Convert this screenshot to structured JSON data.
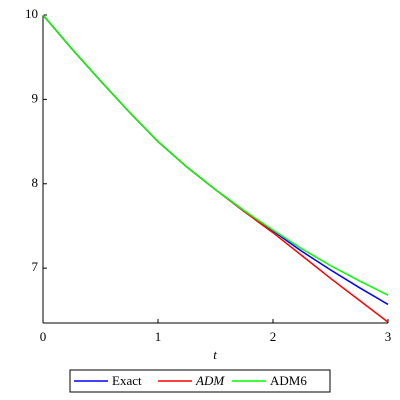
{
  "chart_data": {
    "type": "line",
    "x_label": "t",
    "x": [
      0,
      0.25,
      0.5,
      0.75,
      1,
      1.25,
      1.5,
      1.75,
      2,
      2.25,
      2.5,
      2.75,
      3
    ],
    "series": [
      {
        "name": "Exact",
        "color": "#0000ff",
        "values": [
          10,
          9.6,
          9.22,
          8.85,
          8.5,
          8.2,
          7.93,
          7.68,
          7.44,
          7.2,
          6.98,
          6.77,
          6.57
        ]
      },
      {
        "name": "ADM",
        "color": "#ff0000",
        "italic": true,
        "values": [
          10,
          9.6,
          9.22,
          8.85,
          8.5,
          8.2,
          7.93,
          7.67,
          7.42,
          7.15,
          6.88,
          6.62,
          6.36
        ]
      },
      {
        "name": "ADM6",
        "color": "#00ff00",
        "values": [
          10,
          9.6,
          9.22,
          8.85,
          8.5,
          8.2,
          7.93,
          7.68,
          7.45,
          7.23,
          7.03,
          6.85,
          6.68
        ]
      }
    ],
    "xlim": [
      0,
      3
    ],
    "xticks": [
      0,
      1,
      2,
      3
    ],
    "ylim": [
      6.35,
      10
    ],
    "yticks": [
      7,
      8,
      9,
      10
    ]
  }
}
